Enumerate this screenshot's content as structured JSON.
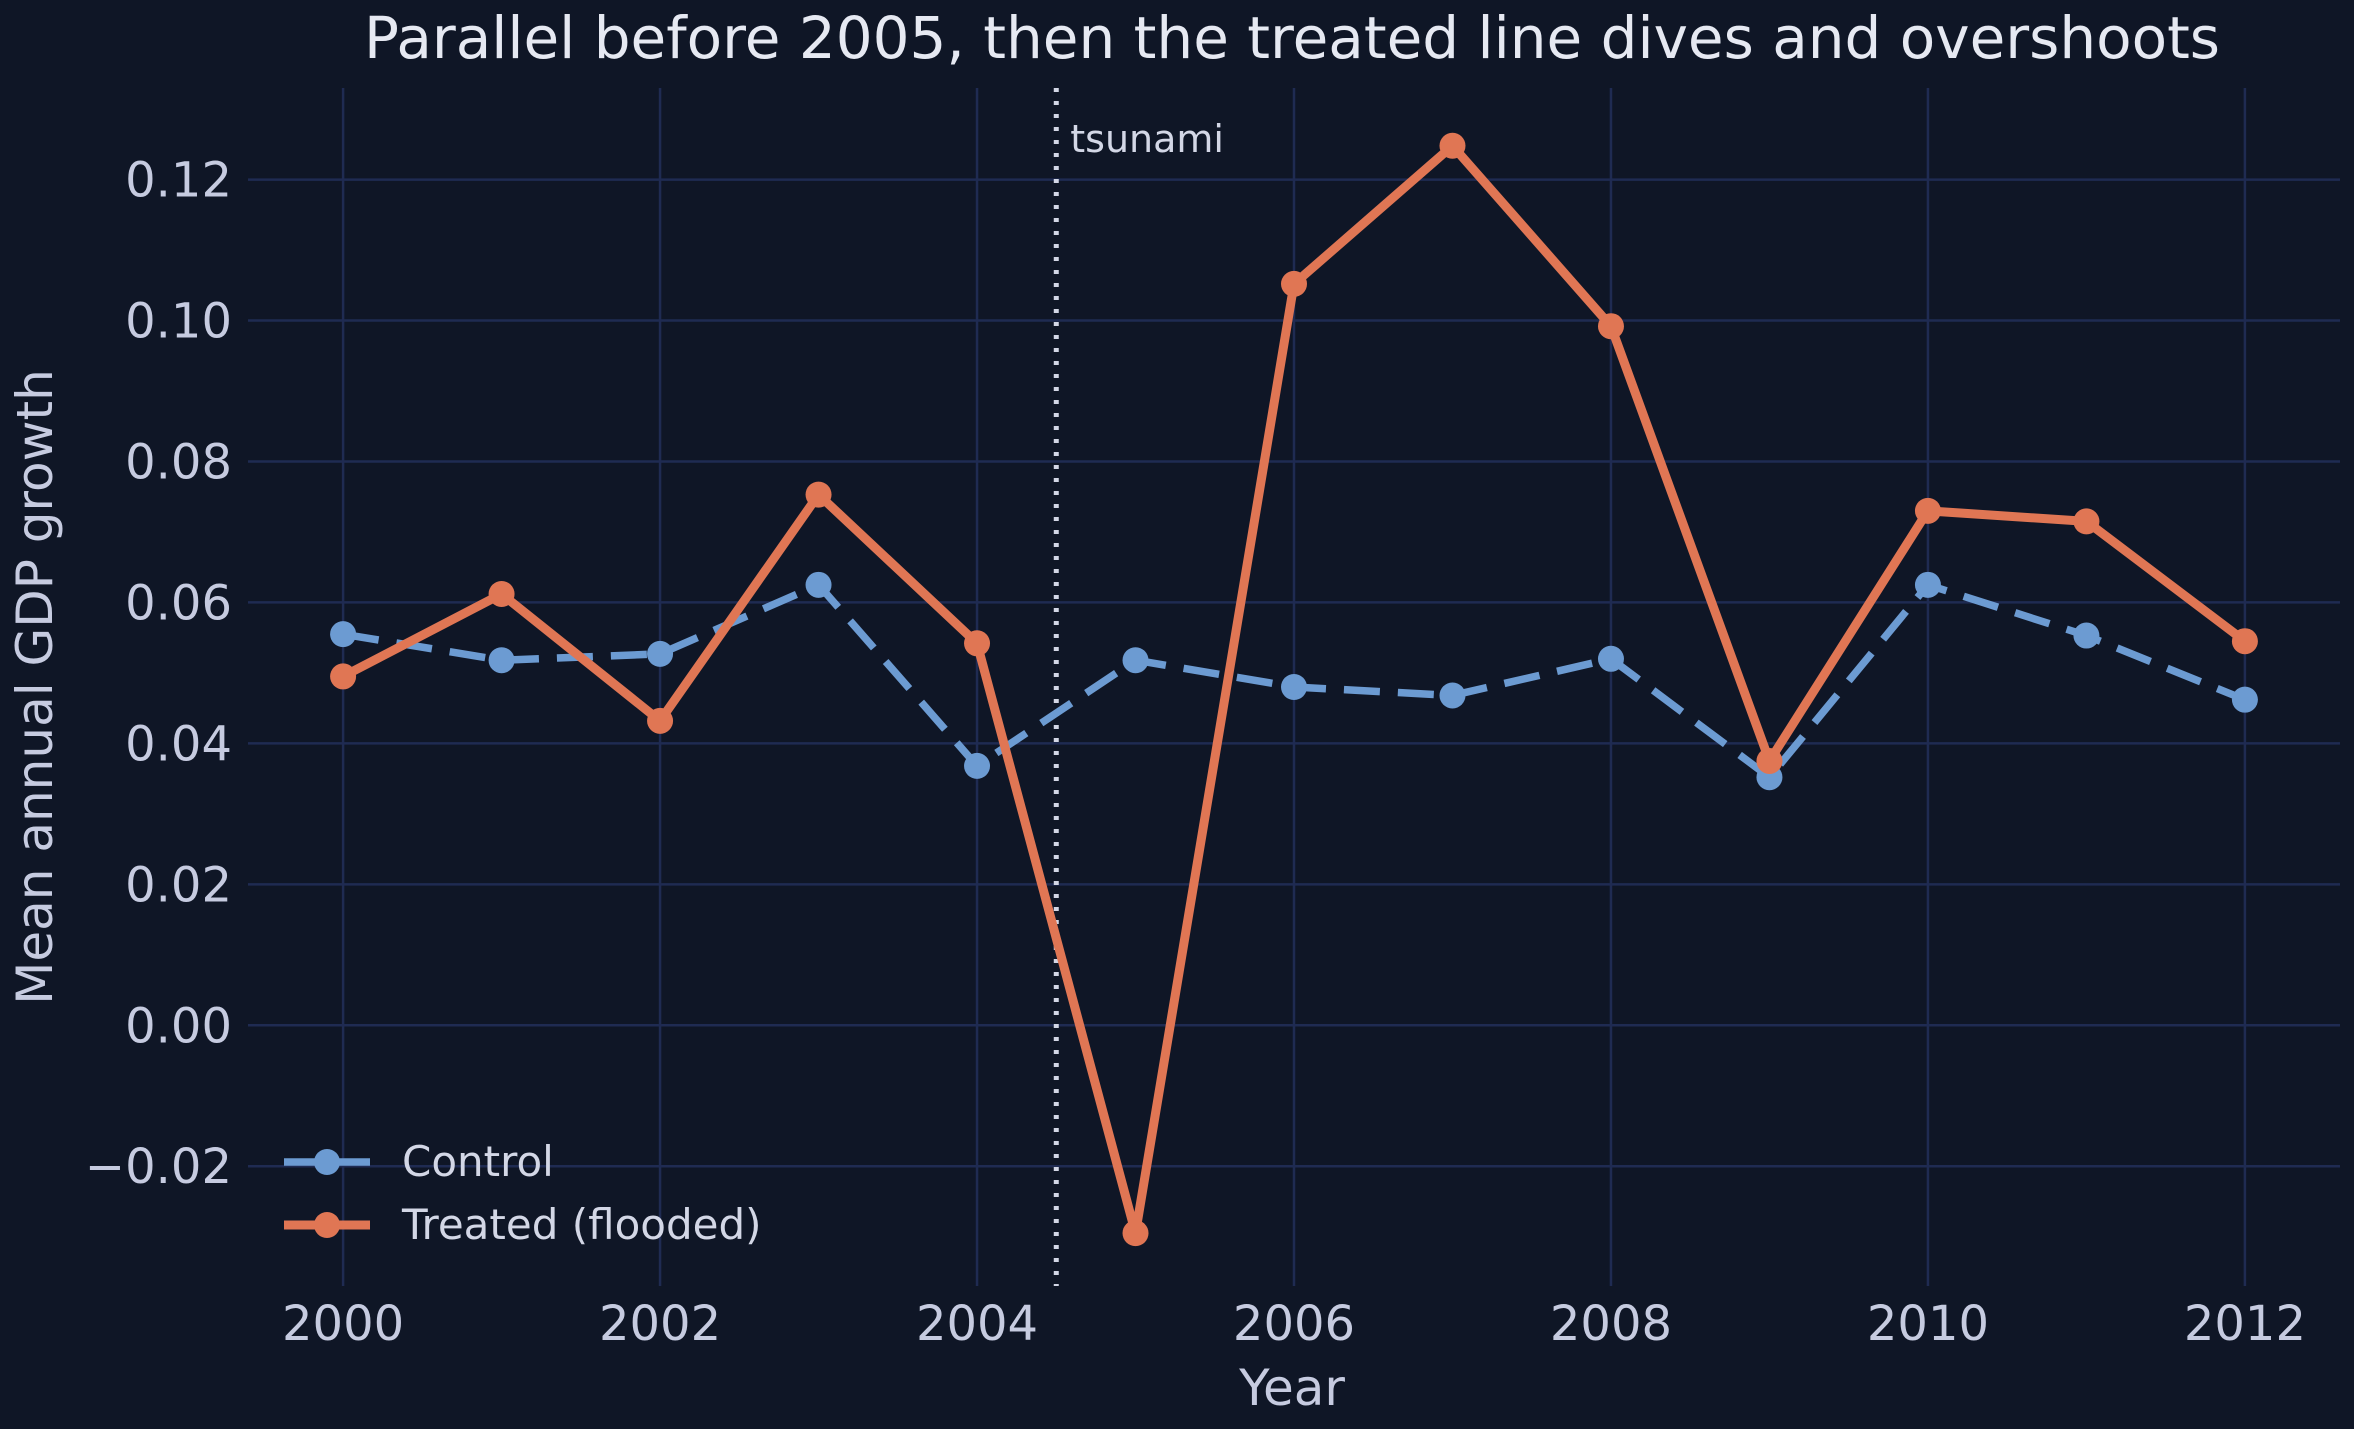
{
  "chart_data": {
    "type": "line",
    "title": "Parallel before 2005, then the treated line dives and overshoots",
    "xlabel": "Year",
    "ylabel": "Mean annual GDP growth",
    "x": [
      2000,
      2001,
      2002,
      2003,
      2004,
      2005,
      2006,
      2007,
      2008,
      2009,
      2010,
      2011,
      2012
    ],
    "xlim": [
      1999.4,
      2012.6
    ],
    "ylim": [
      -0.037,
      0.133
    ],
    "x_ticks": [
      2000,
      2002,
      2004,
      2006,
      2008,
      2010,
      2012
    ],
    "x_tick_labels": [
      "2000",
      "2002",
      "2004",
      "2006",
      "2008",
      "2010",
      "2012"
    ],
    "y_ticks": [
      -0.02,
      0.0,
      0.02,
      0.04,
      0.06,
      0.08,
      0.1,
      0.12
    ],
    "y_tick_labels": [
      "−0.02",
      "0.00",
      "0.02",
      "0.04",
      "0.06",
      "0.08",
      "0.10",
      "0.12"
    ],
    "grid": true,
    "legend_position": "lower-left",
    "series": [
      {
        "name": "Control",
        "color": "#6c9bd2",
        "style": "dashed",
        "values": [
          0.0555,
          0.0518,
          0.0527,
          0.0625,
          0.0368,
          0.0518,
          0.048,
          0.0468,
          0.052,
          0.0352,
          0.0625,
          0.0553,
          0.0462
        ]
      },
      {
        "name": "Treated (flooded)",
        "color": "#e07654",
        "style": "solid",
        "values": [
          0.0495,
          0.0612,
          0.0432,
          0.0753,
          0.0542,
          -0.0295,
          0.1052,
          0.1248,
          0.0992,
          0.0375,
          0.073,
          0.0715,
          0.0545
        ]
      }
    ],
    "annotations": [
      {
        "type": "vline",
        "x": 2004.5,
        "label": "tsunami",
        "color": "#d3d7e6",
        "style": "dotted"
      }
    ]
  }
}
